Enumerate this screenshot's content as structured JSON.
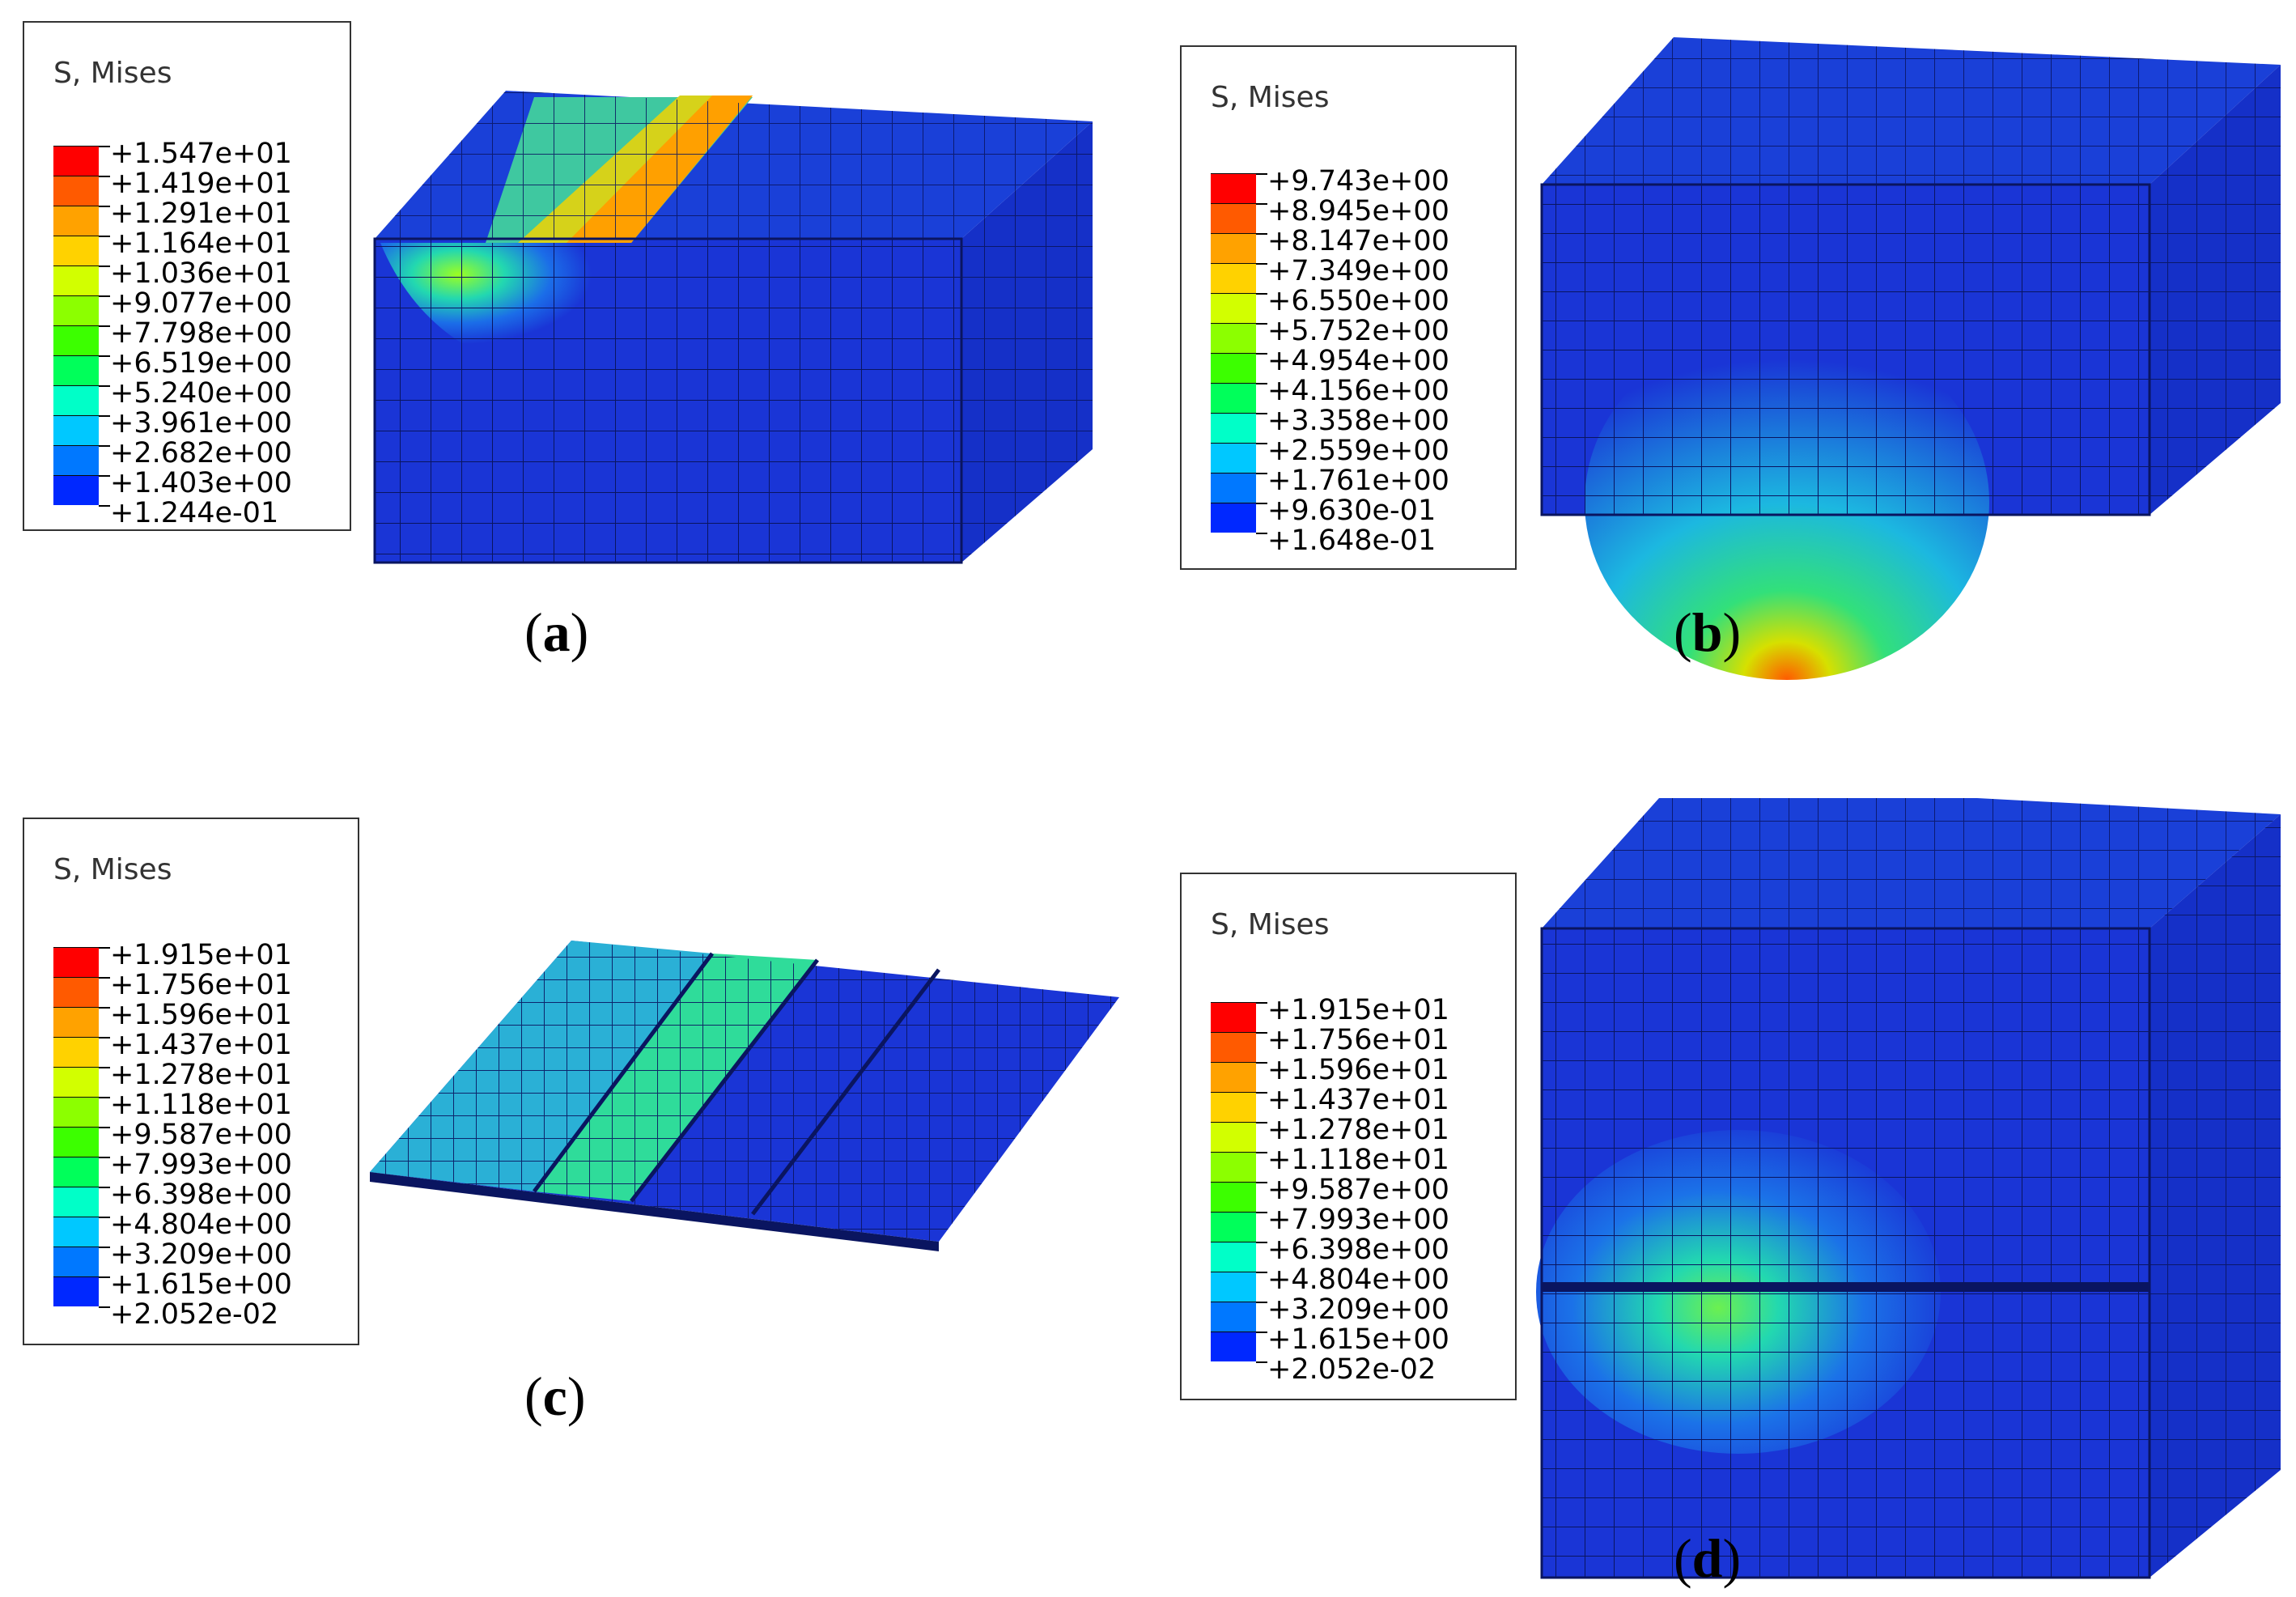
{
  "panels": [
    {
      "caption": "a",
      "legend": {
        "title": "S, Mises",
        "values": [
          "+1.547e+01",
          "+1.419e+01",
          "+1.291e+01",
          "+1.164e+01",
          "+1.036e+01",
          "+9.077e+00",
          "+7.798e+00",
          "+6.519e+00",
          "+5.240e+00",
          "+3.961e+00",
          "+2.682e+00",
          "+1.403e+00",
          "+1.244e-01"
        ]
      }
    },
    {
      "caption": "b",
      "legend": {
        "title": "S, Mises",
        "values": [
          "+9.743e+00",
          "+8.945e+00",
          "+8.147e+00",
          "+7.349e+00",
          "+6.550e+00",
          "+5.752e+00",
          "+4.954e+00",
          "+4.156e+00",
          "+3.358e+00",
          "+2.559e+00",
          "+1.761e+00",
          "+9.630e-01",
          "+1.648e-01"
        ]
      }
    },
    {
      "caption": "c",
      "legend": {
        "title": "S, Mises",
        "values": [
          "+1.915e+01",
          "+1.756e+01",
          "+1.596e+01",
          "+1.437e+01",
          "+1.278e+01",
          "+1.118e+01",
          "+9.587e+00",
          "+7.993e+00",
          "+6.398e+00",
          "+4.804e+00",
          "+3.209e+00",
          "+1.615e+00",
          "+2.052e-02"
        ]
      }
    },
    {
      "caption": "d",
      "legend": {
        "title": "S, Mises",
        "values": [
          "+1.915e+01",
          "+1.756e+01",
          "+1.596e+01",
          "+1.437e+01",
          "+1.278e+01",
          "+1.118e+01",
          "+9.587e+00",
          "+7.993e+00",
          "+6.398e+00",
          "+4.804e+00",
          "+3.209e+00",
          "+1.615e+00",
          "+2.052e-02"
        ]
      }
    }
  ],
  "colors": {
    "scale": [
      "#ff0000",
      "#ff5a00",
      "#ffa200",
      "#ffd200",
      "#d2ff00",
      "#8cff00",
      "#3cff00",
      "#00ff5a",
      "#00ffc8",
      "#00c8ff",
      "#0078ff",
      "#0028ff",
      "#0000ff"
    ],
    "mesh_base": "#1a35d6",
    "mesh_line": "#0a1560"
  }
}
